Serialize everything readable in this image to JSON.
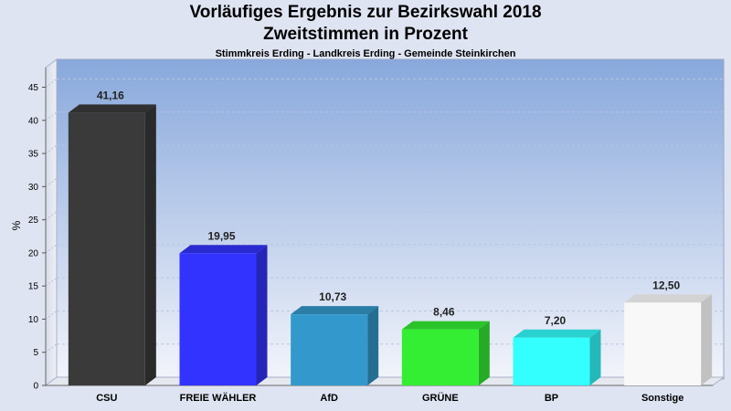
{
  "chart_data": {
    "type": "bar",
    "title": "Vorläufiges Ergebnis zur Bezirkswahl 2018",
    "subtitle": "Zweitstimmen in Prozent",
    "caption": "Stimmkreis Erding - Landkreis Erding - Gemeinde Steinkirchen",
    "xlabel": "",
    "ylabel": "%",
    "ylim": [
      0,
      47
    ],
    "yticks": [
      0,
      5,
      10,
      15,
      20,
      25,
      30,
      35,
      40,
      45
    ],
    "grid": true,
    "categories": [
      "CSU",
      "FREIE WÄHLER",
      "AfD",
      "GRÜNE",
      "BP",
      "Sonstige"
    ],
    "values": [
      41.16,
      19.95,
      10.73,
      8.46,
      7.2,
      12.5
    ],
    "value_labels": [
      "41,16",
      "19,95",
      "10,73",
      "8,46",
      "7,20",
      "12,50"
    ],
    "colors": [
      "#3a3a3a",
      "#3333ff",
      "#3399cc",
      "#33ee33",
      "#33ffff",
      "#f8f8f8"
    ]
  }
}
